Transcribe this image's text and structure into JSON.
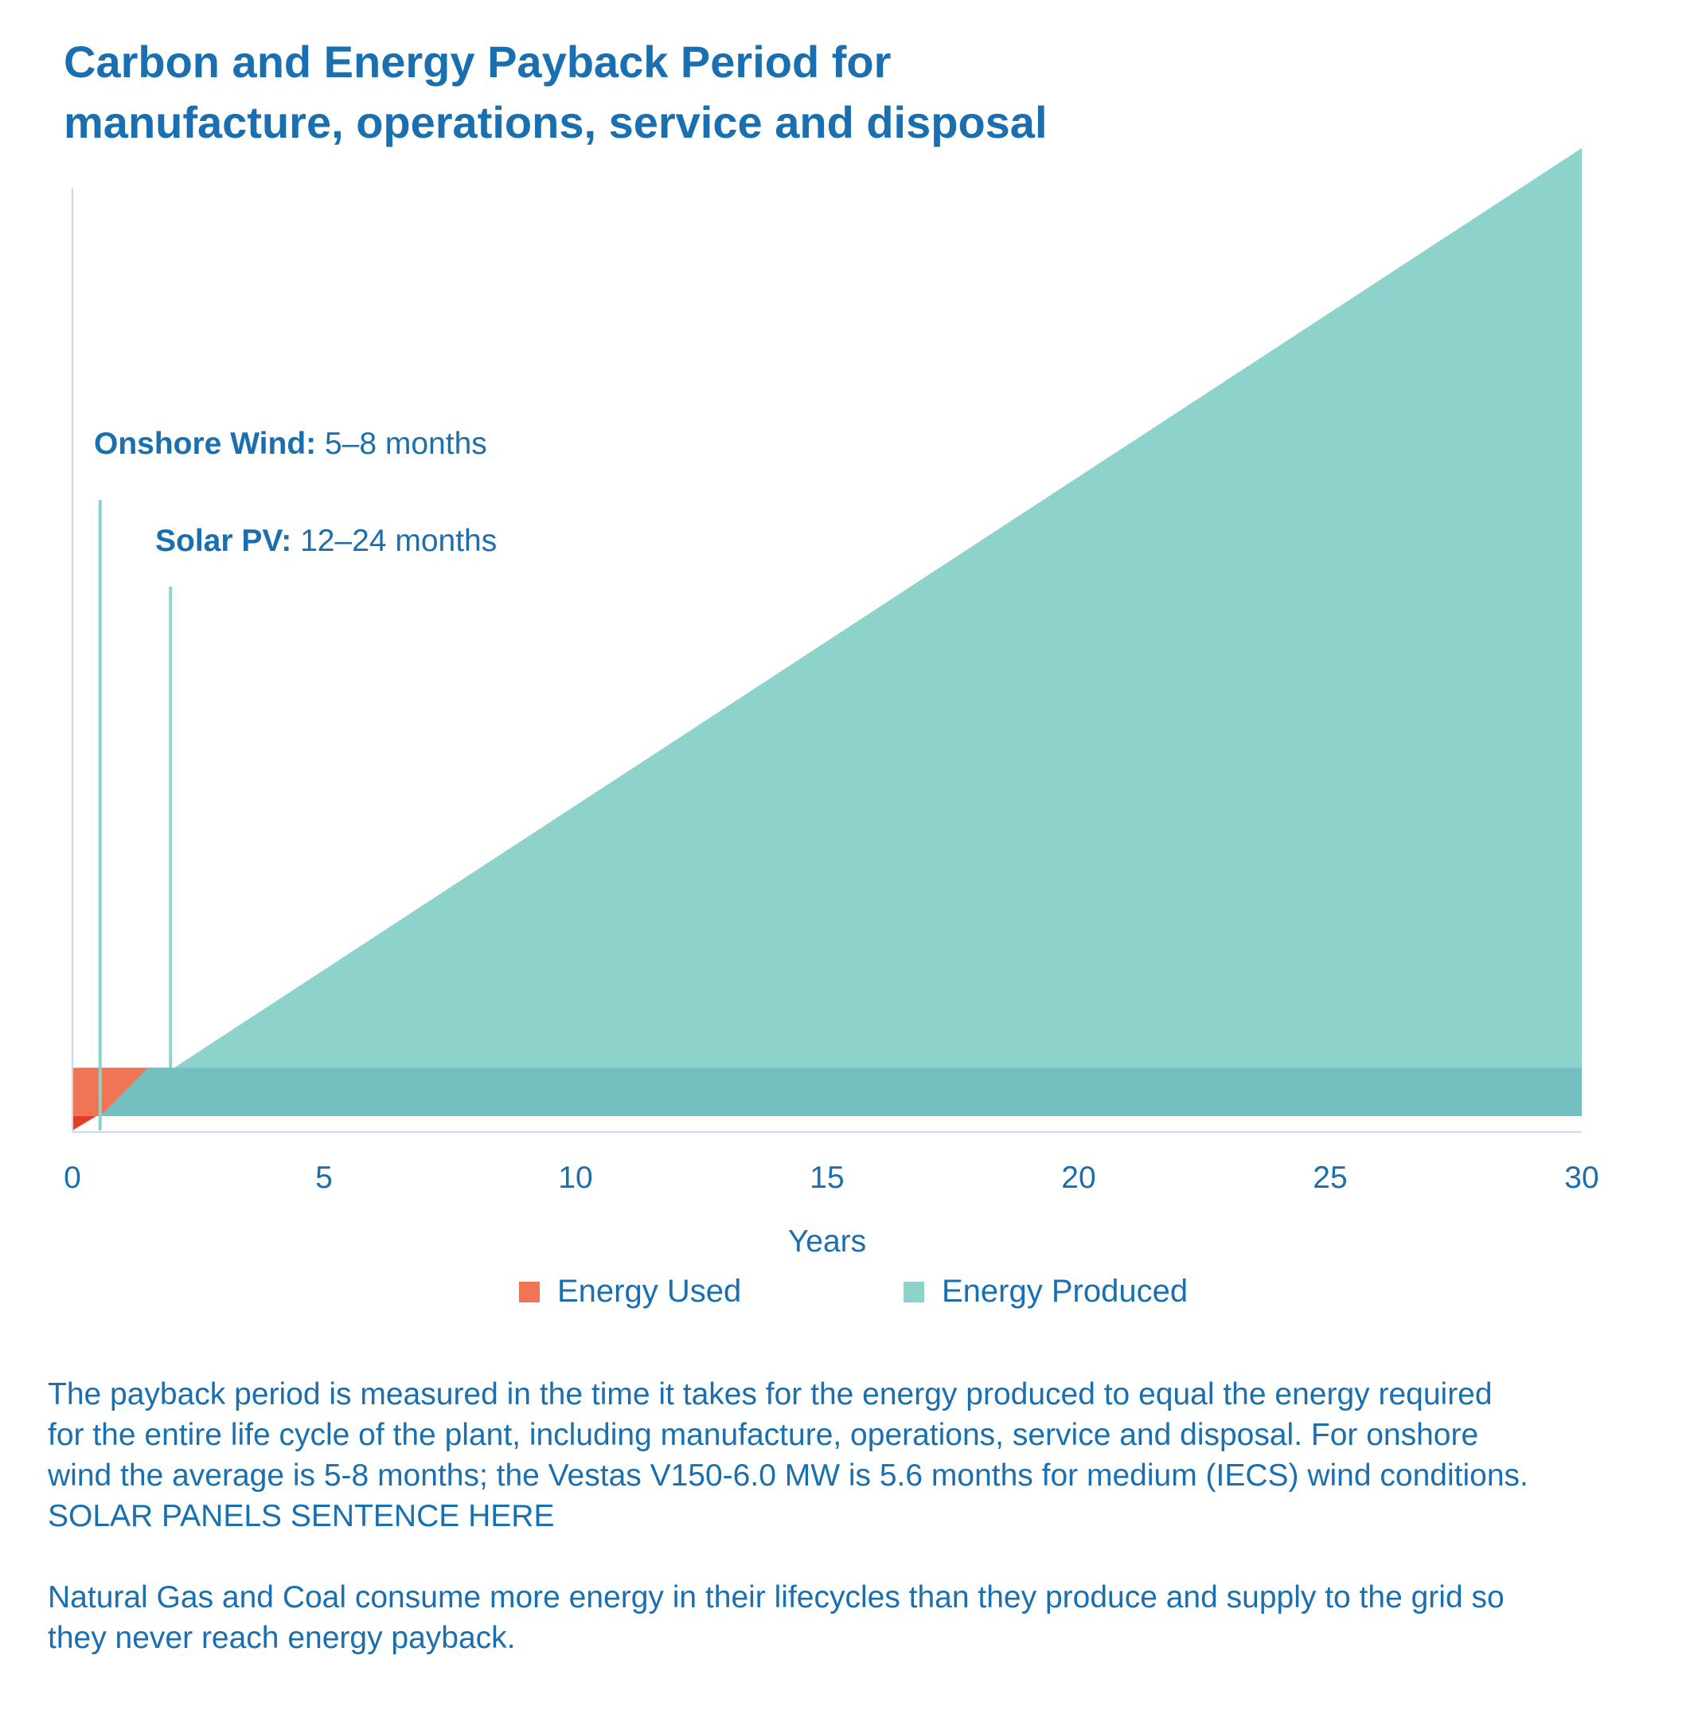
{
  "chart_data": {
    "type": "area",
    "title_line1": "Carbon and Energy Payback Period for",
    "title_line2": "manufacture, operations, service and disposal",
    "xlabel": "Years",
    "ylabel": "",
    "xlim": [
      0,
      30
    ],
    "x_ticks": [
      "0",
      "5",
      "10",
      "15",
      "20",
      "25",
      "30"
    ],
    "energy_used_level": 1,
    "energy_produced_end": 20,
    "annotations": [
      {
        "name": "onshore-wind",
        "bold": "Onshore Wind:",
        "text": " 5–8 months",
        "x_years": 0.55
      },
      {
        "name": "solar-pv",
        "bold": "Solar PV:",
        "text": " 12–24 months",
        "x_years": 1.95
      }
    ],
    "series": [
      {
        "name": "Energy Used",
        "color": "#ef7556"
      },
      {
        "name": "Energy Produced",
        "color": "#8dd3cb"
      }
    ],
    "colors": {
      "used": "#ef7556",
      "used_dark": "#e0402a",
      "produced": "#8dd3cb",
      "overlap": "#74bfbf",
      "axis": "#c6dbe6",
      "text": "#1a6fb0"
    },
    "grid": false
  },
  "notes": {
    "paragraph1_line1": "The  payback period is measured in the time it takes for the energy produced to equal the energy required",
    "paragraph1_line2": "for the entire life cycle of the plant, including manufacture, operations, service and disposal. For onshore",
    "paragraph1_line3": "wind the average is 5-8 months; the Vestas V150-6.0 MW is 5.6 months for medium (IECS) wind conditions.",
    "paragraph1_line4": "SOLAR PANELS SENTENCE HERE",
    "paragraph2_line1": "Natural Gas and Coal consume more energy in their lifecycles than they produce and supply to the grid so",
    "paragraph2_line2": "they never reach energy payback."
  }
}
